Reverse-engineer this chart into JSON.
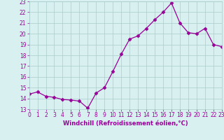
{
  "x": [
    0,
    1,
    2,
    3,
    4,
    5,
    6,
    7,
    8,
    9,
    10,
    11,
    12,
    13,
    14,
    15,
    16,
    17,
    18,
    19,
    20,
    21,
    22,
    23
  ],
  "y": [
    14.4,
    14.6,
    14.2,
    14.1,
    13.9,
    13.85,
    13.75,
    13.1,
    14.5,
    15.0,
    16.5,
    18.1,
    19.5,
    19.8,
    20.5,
    21.3,
    22.0,
    22.85,
    21.0,
    20.1,
    20.0,
    20.5,
    19.0,
    18.8
  ],
  "line_color": "#990099",
  "marker": "D",
  "marker_size": 2.5,
  "bg_color": "#d8f0f0",
  "grid_color": "#aacccc",
  "xlabel": "Windchill (Refroidissement éolien,°C)",
  "xlabel_color": "#990099",
  "tick_color": "#990099",
  "ylim": [
    13,
    23
  ],
  "xlim": [
    0,
    23
  ],
  "yticks": [
    13,
    14,
    15,
    16,
    17,
    18,
    19,
    20,
    21,
    22,
    23
  ],
  "xticks": [
    0,
    1,
    2,
    3,
    4,
    5,
    6,
    7,
    8,
    9,
    10,
    11,
    12,
    13,
    14,
    15,
    16,
    17,
    18,
    19,
    20,
    21,
    22,
    23
  ],
  "ylabel_fontsize": 6,
  "xlabel_fontsize": 6,
  "tick_fontsize": 5.5
}
